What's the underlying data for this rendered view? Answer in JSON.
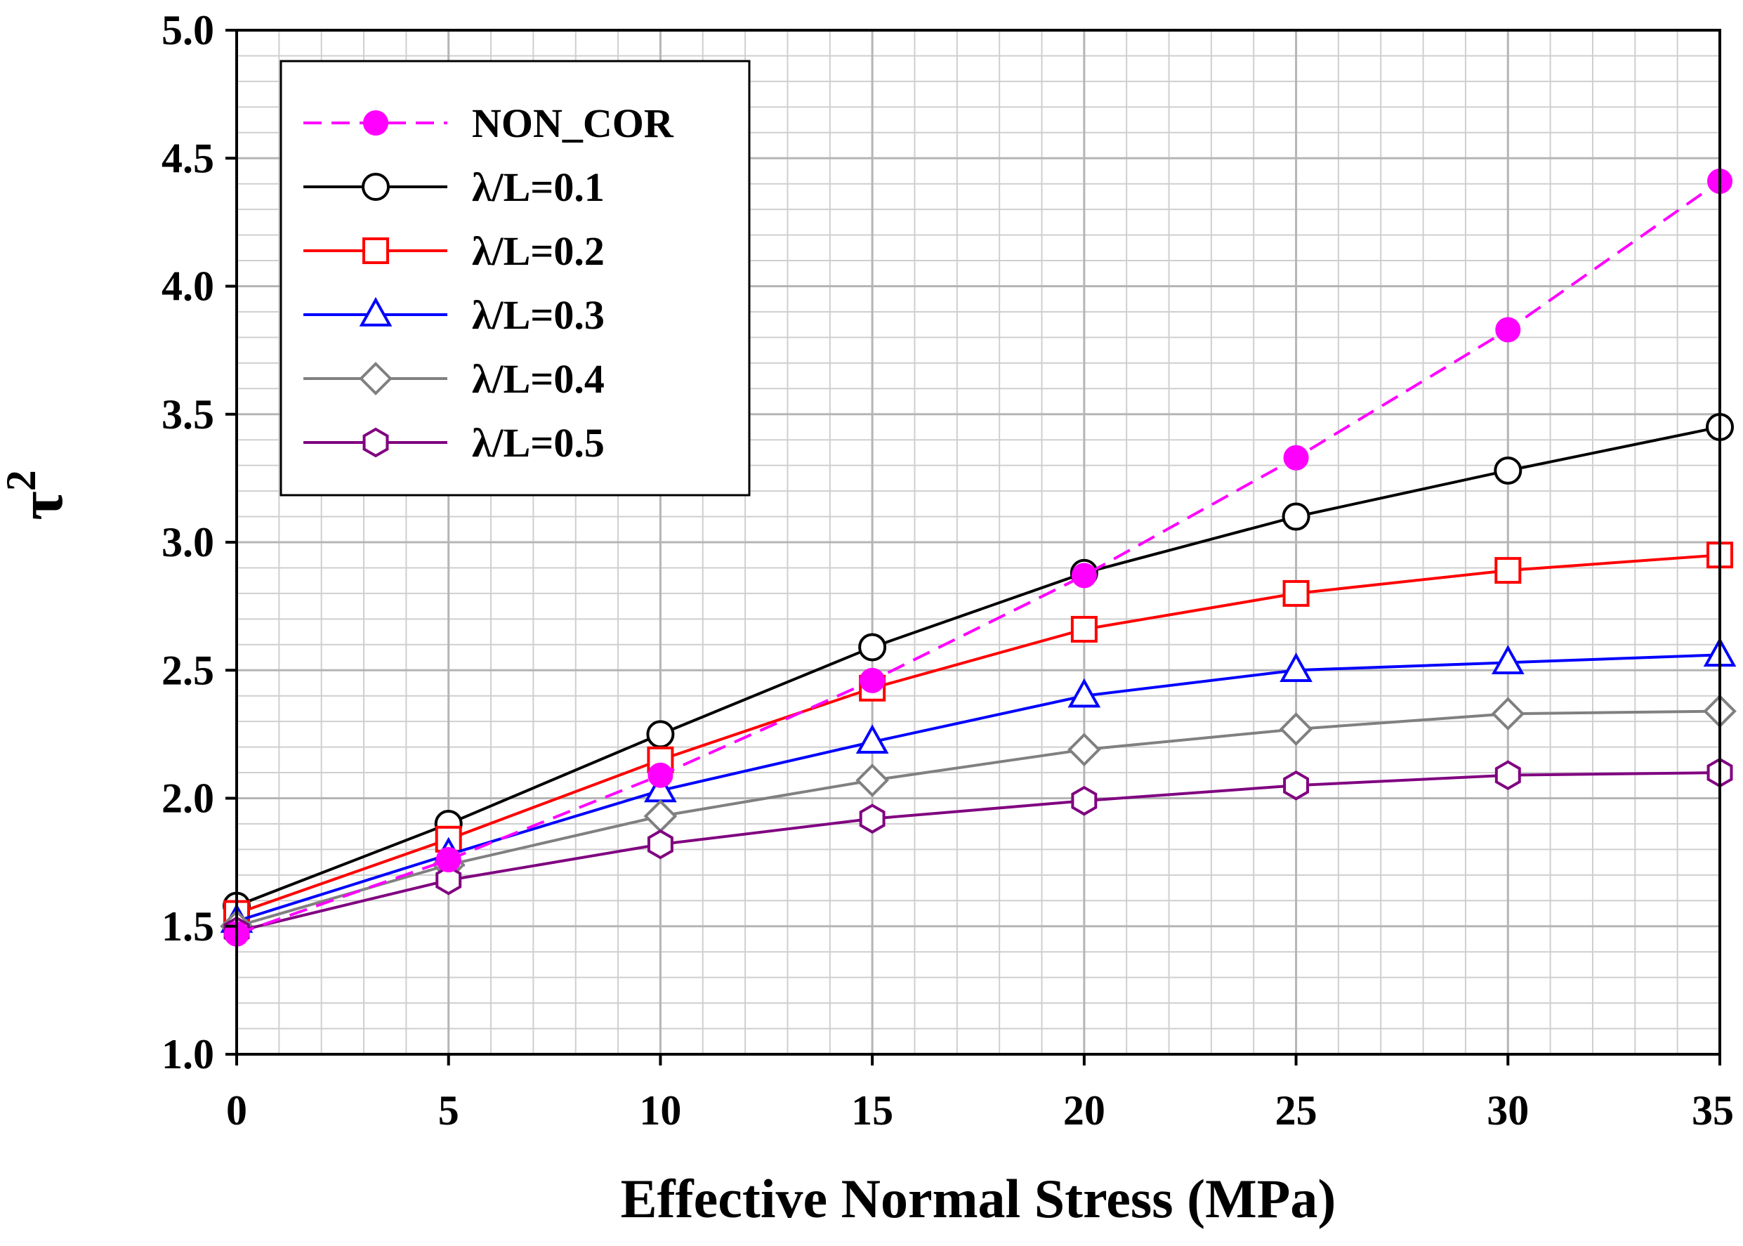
{
  "chart_data": {
    "type": "line",
    "title": "",
    "xlabel": "Effective Normal Stress (MPa)",
    "ylabel": "τ",
    "ylabel_superscript": "2",
    "x": [
      0,
      5,
      10,
      15,
      20,
      25,
      30,
      35
    ],
    "xlim": [
      0,
      35
    ],
    "ylim": [
      1.0,
      5.0
    ],
    "x_ticks": [
      0,
      5,
      10,
      15,
      20,
      25,
      30,
      35
    ],
    "x_tick_labels": [
      "0",
      "5",
      "10",
      "15",
      "20",
      "25",
      "30",
      "35"
    ],
    "y_ticks": [
      1.0,
      1.5,
      2.0,
      2.5,
      3.0,
      3.5,
      4.0,
      4.5,
      5.0
    ],
    "y_tick_labels": [
      "1.0",
      "1.5",
      "2.0",
      "2.5",
      "3.0",
      "3.5",
      "4.0",
      "4.5",
      "5.0"
    ],
    "grid": true,
    "legend_position": "top-left",
    "series": [
      {
        "name": "NON_COR",
        "marker": "filled-circle",
        "dashed": true,
        "color": "#ff00ff",
        "values": [
          1.47,
          1.76,
          2.09,
          2.46,
          2.87,
          3.33,
          3.83,
          4.41
        ]
      },
      {
        "name": "λ/L=0.1",
        "marker": "circle",
        "dashed": false,
        "color": "#000000",
        "values": [
          1.58,
          1.9,
          2.25,
          2.59,
          2.88,
          3.1,
          3.28,
          3.45
        ]
      },
      {
        "name": "λ/L=0.2",
        "marker": "square",
        "dashed": false,
        "color": "#ff0000",
        "values": [
          1.55,
          1.84,
          2.15,
          2.43,
          2.66,
          2.8,
          2.89,
          2.95
        ]
      },
      {
        "name": "λ/L=0.3",
        "marker": "triangle",
        "dashed": false,
        "color": "#0000ff",
        "values": [
          1.52,
          1.78,
          2.03,
          2.22,
          2.4,
          2.5,
          2.53,
          2.56
        ]
      },
      {
        "name": "λ/L=0.4",
        "marker": "diamond",
        "dashed": false,
        "color": "#808080",
        "values": [
          1.5,
          1.74,
          1.93,
          2.07,
          2.19,
          2.27,
          2.33,
          2.34
        ]
      },
      {
        "name": "λ/L=0.5",
        "marker": "hexagon",
        "dashed": false,
        "color": "#800080",
        "values": [
          1.48,
          1.68,
          1.82,
          1.92,
          1.99,
          2.05,
          2.09,
          2.1
        ]
      }
    ]
  }
}
